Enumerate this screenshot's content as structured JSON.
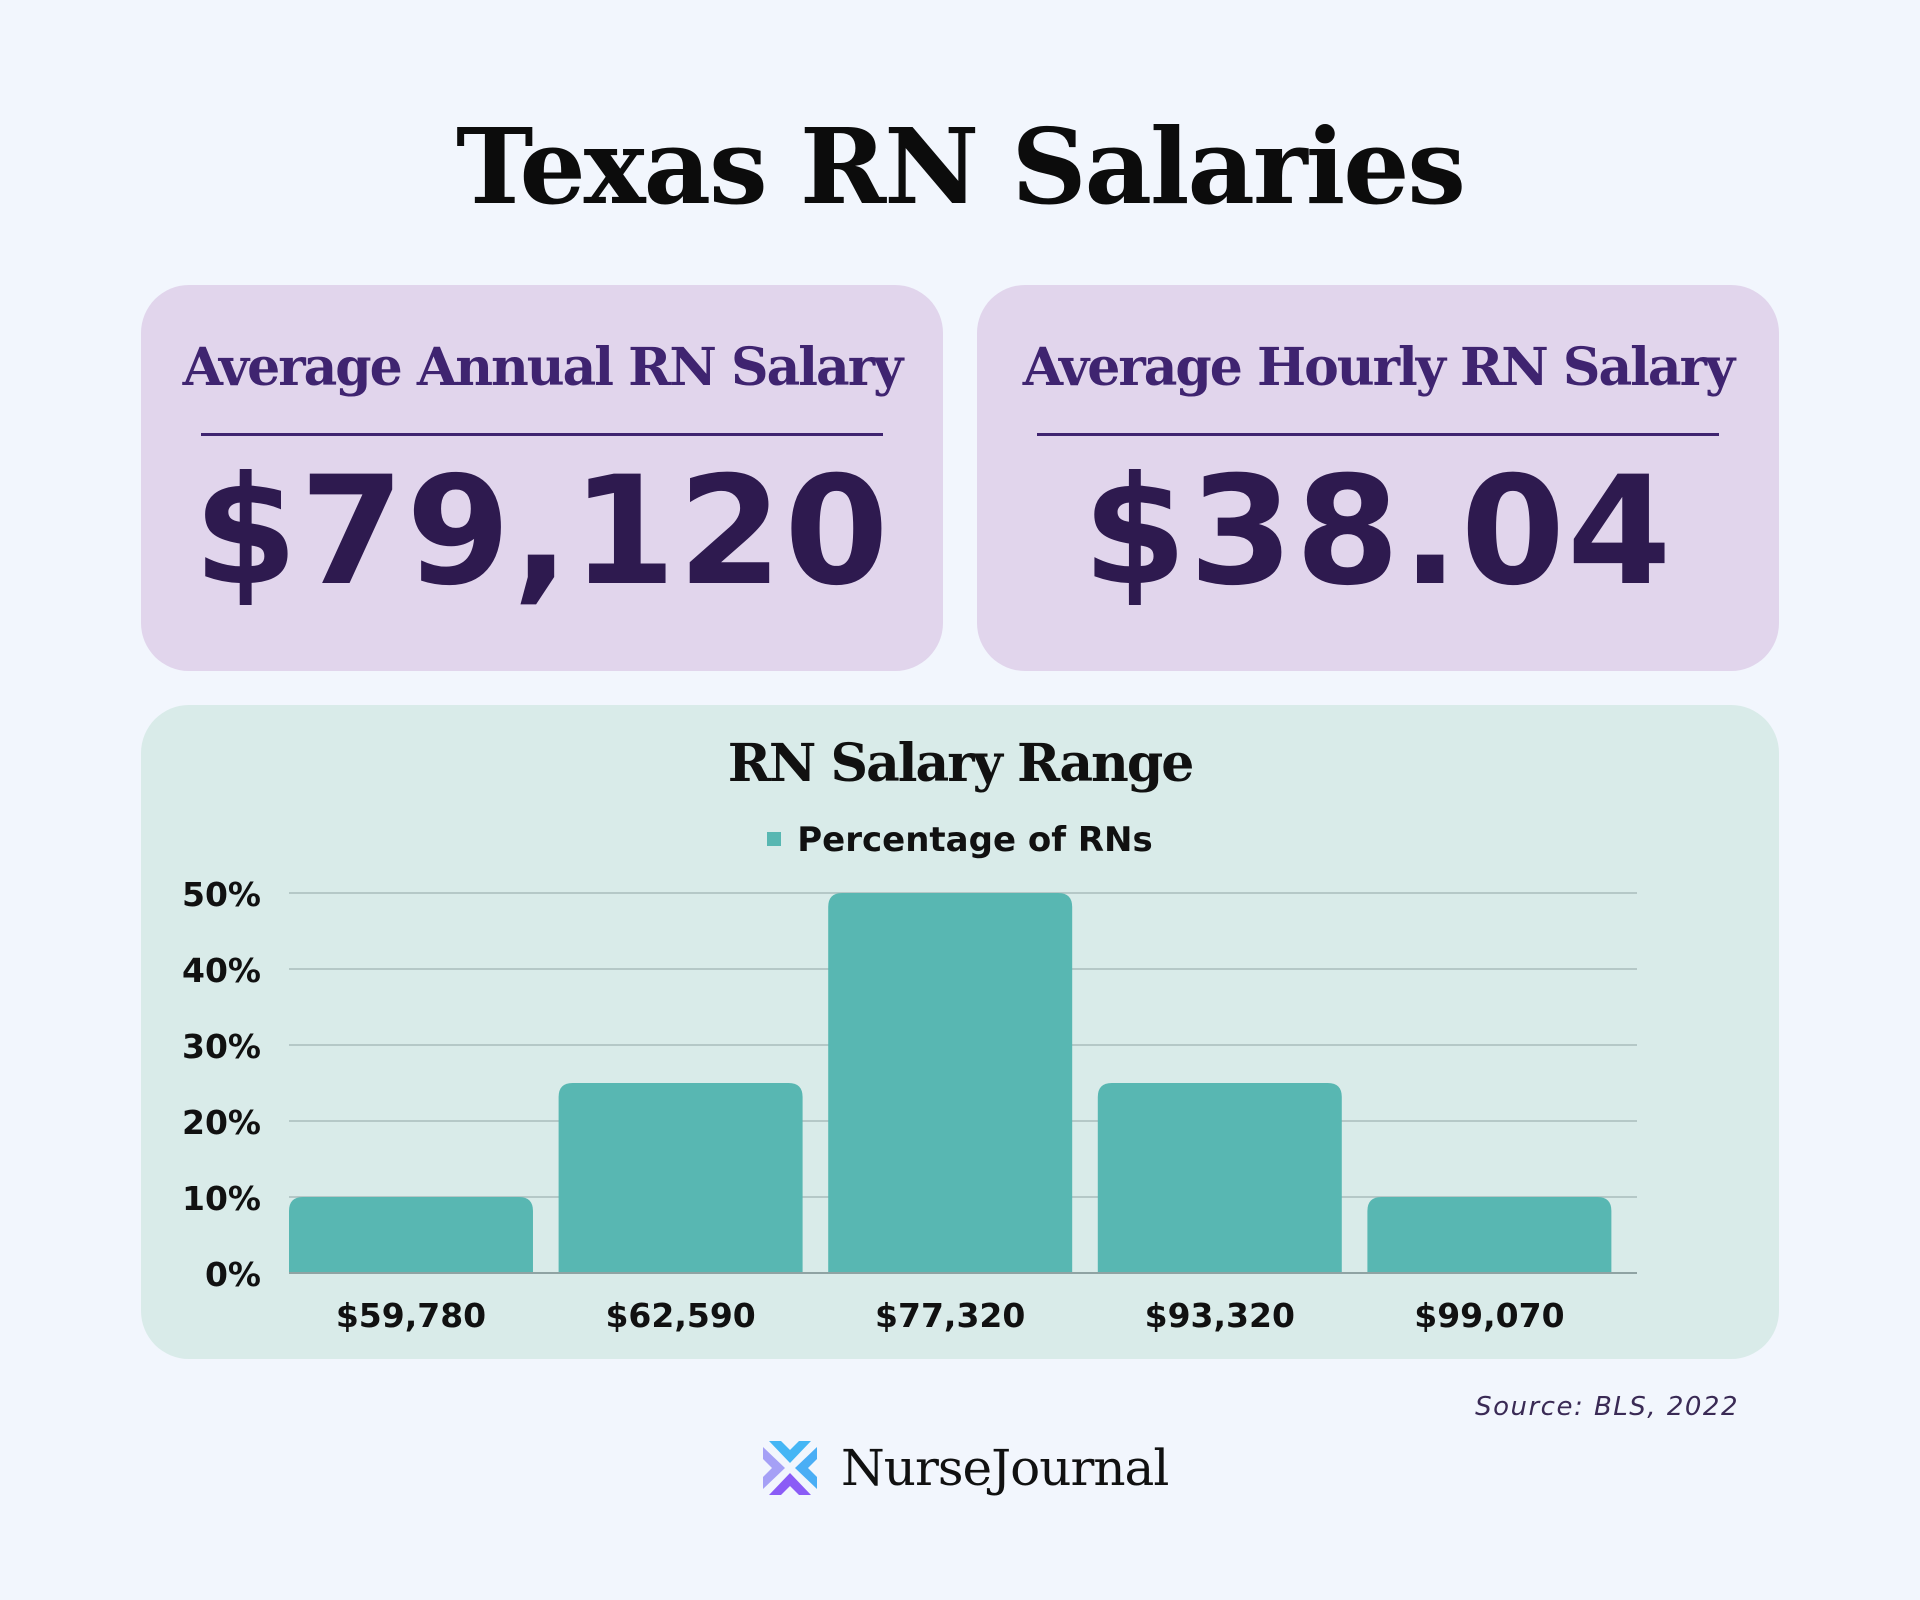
{
  "title": "Texas RN Salaries",
  "cards": [
    {
      "heading": "Average Annual RN Salary",
      "value": "$79,120"
    },
    {
      "heading": "Average Hourly RN Salary",
      "value": "$38.04"
    }
  ],
  "colors": {
    "background": "#f2f6fd",
    "card": "#e1d5ec",
    "card_text": "#3f2470",
    "chart_card": "#d9ebe9",
    "bar": "#58b7b2"
  },
  "chart_data": {
    "type": "bar",
    "title": "RN Salary Range",
    "categories": [
      "$59,780",
      "$62,590",
      "$77,320",
      "$93,320",
      "$99,070"
    ],
    "series": [
      {
        "name": "Percentage of RNs",
        "values": [
          10,
          25,
          50,
          25,
          10
        ]
      }
    ],
    "yticks": [
      "0%",
      "10%",
      "20%",
      "30%",
      "40%",
      "50%"
    ],
    "ylim": [
      0,
      50
    ],
    "grid": true,
    "legend": "top-center"
  },
  "source": "Source: BLS, 2022",
  "logo": {
    "icon": "nursejournal-logo-icon",
    "text": "NurseJournal"
  }
}
